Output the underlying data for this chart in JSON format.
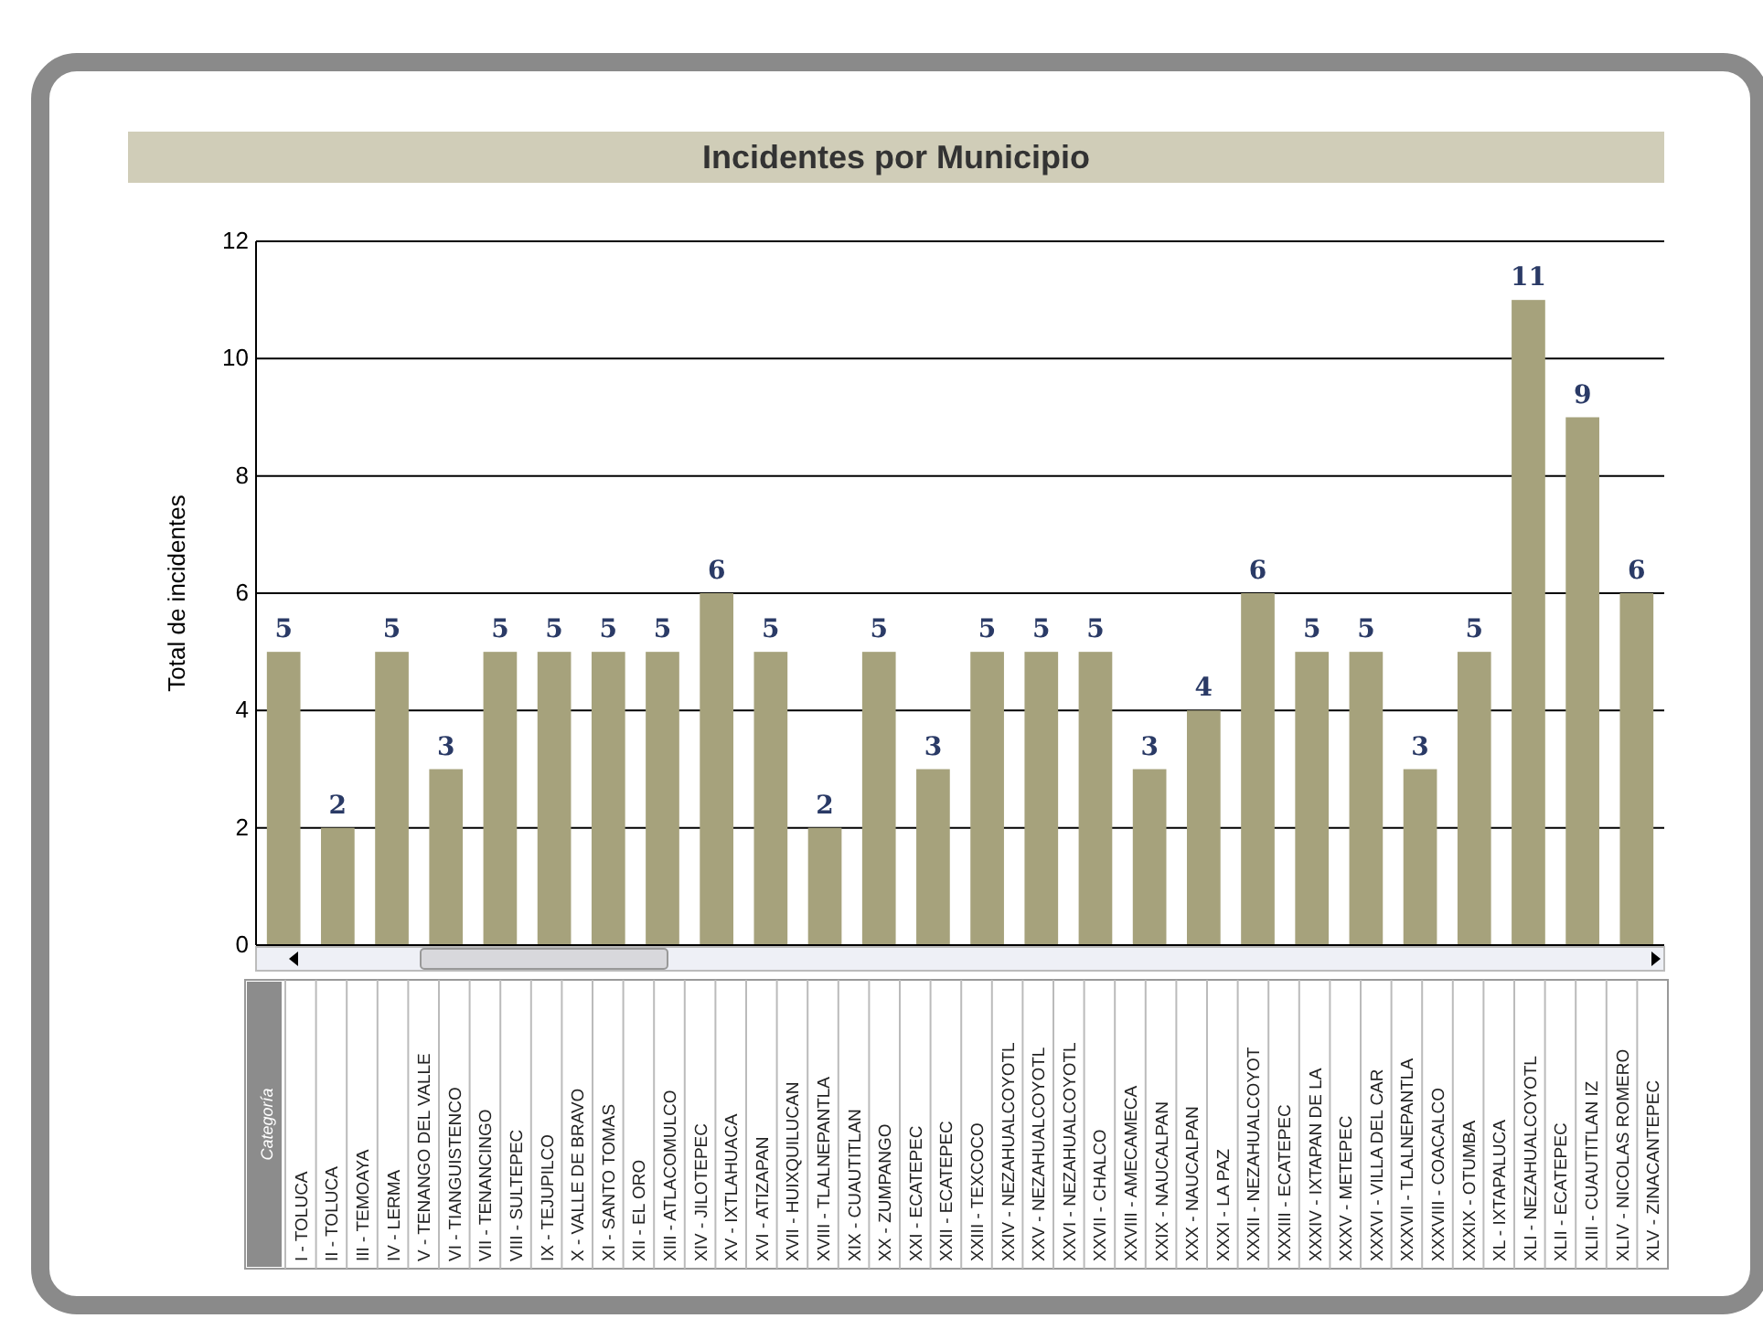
{
  "chart_data": {
    "type": "bar",
    "title": "Incidentes por Municipio",
    "ylabel": "Total de incidentes",
    "categories": [
      null,
      null,
      null,
      null,
      null,
      null,
      null,
      null,
      null,
      null,
      null,
      null,
      null,
      null,
      null,
      null,
      null,
      null,
      null,
      null,
      null,
      null,
      null,
      null,
      null,
      null
    ],
    "values": [
      5,
      2,
      5,
      3,
      5,
      5,
      5,
      5,
      6,
      5,
      2,
      5,
      3,
      5,
      5,
      5,
      3,
      4,
      6,
      5,
      5,
      3,
      5,
      11,
      9,
      6
    ],
    "color": "#a6a27c",
    "ylim": [
      0,
      12
    ],
    "yticks": [
      0,
      2,
      4,
      6,
      8,
      10,
      12
    ],
    "grid": "y",
    "data_labels": true,
    "annotations": [
      "Categoría",
      "I - TOLUCA",
      "II - TOLUCA",
      "III - TEMOAYA",
      "IV - LERMA",
      "V - TENANGO DEL VALLE",
      "VI - TIANGUISTENCO",
      "VII - TENANCINGO",
      "VIII - SULTEPEC",
      "IX - TEJUPILCO",
      "X - VALLE DE BRAVO",
      "XI - SANTO TOMAS",
      "XII - EL ORO",
      "XIII - ATLACOMULCO",
      "XIV - JILOTEPEC",
      "XV - IXTLAHUACA",
      "XVI - ATIZAPAN",
      "XVII - HUIXQUILUCAN",
      "XVIII - TLALNEPANTLA",
      "XIX - CUAUTITLAN",
      "XX - ZUMPANGO",
      "XXI - ECATEPEC",
      "XXII - ECATEPEC",
      "XXIII - TEXCOCO",
      "XXIV - NEZAHUALCOYOTL",
      "XXV - NEZAHUALCOYOTL",
      "XXVI - NEZAHUALCOYOTL",
      "XXVII - CHALCO",
      "XXVIII - AMECAMECA",
      "XXIX - NAUCALPAN",
      "XXX - NAUCALPAN",
      "XXXI - LA PAZ",
      "XXXII - NEZAHUALCOYOT",
      "XXXIII - ECATEPEC",
      "XXXIV - IXTAPAN DE LA",
      "XXXV - METEPEC",
      "XXXVI - VILLA DEL CAR",
      "XXXVII - TLALNEPANTLA",
      "XXXVIII - COACALCO",
      "XXXIX - OTUMBA",
      "XL - IXTAPALUCA",
      "XLI - NEZAHUALCOYOTL",
      "XLII - ECATEPEC",
      "XLIII - CUAUTITLAN IZ",
      "XLIV - NICOLAS ROMERO",
      "XLV - ZINACANTEPEC"
    ]
  }
}
